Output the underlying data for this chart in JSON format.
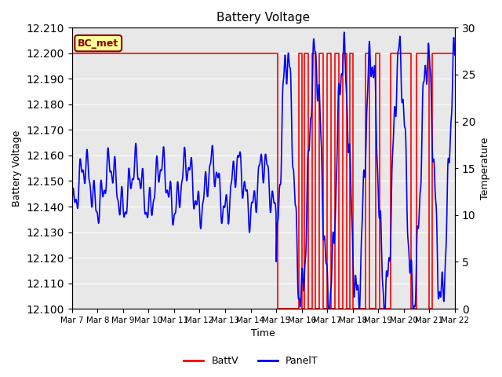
{
  "title": "Battery Voltage",
  "xlabel": "Time",
  "ylabel_left": "Battery Voltage",
  "ylabel_right": "Temperature",
  "annotation_text": "BC_met",
  "ylim_left": [
    12.1,
    12.21
  ],
  "ylim_right": [
    0,
    30
  ],
  "yticks_left": [
    12.1,
    12.11,
    12.12,
    12.13,
    12.14,
    12.15,
    12.16,
    12.17,
    12.18,
    12.19,
    12.2,
    12.21
  ],
  "yticks_right": [
    0,
    5,
    10,
    15,
    20,
    25,
    30
  ],
  "xtick_labels": [
    "Mar 7",
    "Mar 8",
    "Mar 9",
    "Mar 10",
    "Mar 11",
    "Mar 12",
    "Mar 13",
    "Mar 14",
    "Mar 15",
    "Mar 16",
    "Mar 17",
    "Mar 18",
    "Mar 19",
    "Mar 20",
    "Mar 21",
    "Mar 22"
  ],
  "batt_color": "#FF0000",
  "panel_color": "#0000FF",
  "fig_facecolor": "#FFFFFF",
  "plot_facecolor": "#E8E8E8",
  "grid_color": "#FFFFFF",
  "legend_entries": [
    "BattV",
    "PanelT"
  ],
  "annotation_bg": "#FFFF99",
  "annotation_border": "#8B0000",
  "annotation_text_color": "#8B0000"
}
